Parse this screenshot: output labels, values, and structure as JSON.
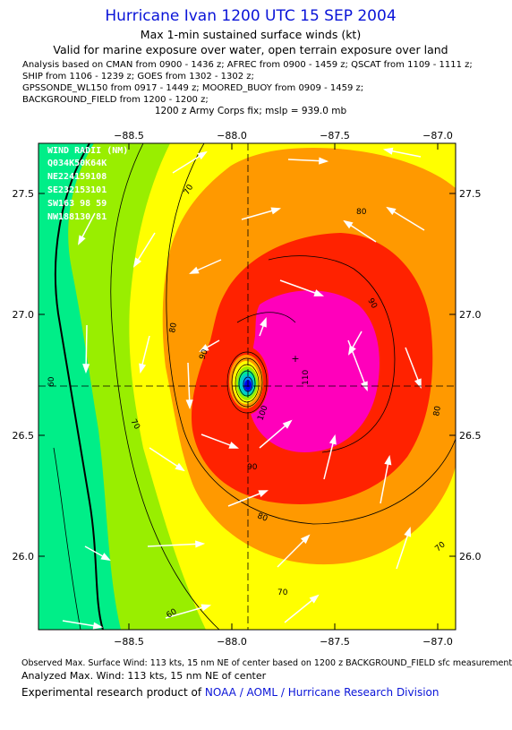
{
  "header": {
    "title": "Hurricane Ivan 1200 UTC 15 SEP 2004",
    "subtitle": "Max 1-min sustained surface winds (kt)",
    "valid_for": "Valid for marine exposure over water, open terrain exposure over land",
    "analysis_lines": [
      "Analysis based on  CMAN from 0900 - 1436 z;  AFREC from 0900 - 1459 z;  QSCAT from 1109 - 1111 z;",
      "SHIP from 1106 - 1239 z;  GOES from 1302 - 1302 z;",
      "GPSSONDE_WL150 from 0917 - 1449 z;  MOORED_BUOY from 0909 - 1459 z;",
      "BACKGROUND_FIELD from 1200 - 1200 z;"
    ],
    "army_fix": "1200 z Army Corps fix; mslp = 939.0 mb"
  },
  "map": {
    "x_ticks": [
      "−88.5",
      "−88.0",
      "−87.5",
      "−87.0"
    ],
    "y_ticks": [
      "27.5",
      "27.0",
      "26.5",
      "26.0"
    ],
    "contour_labels": [
      "60",
      "70",
      "80",
      "90",
      "100",
      "110"
    ],
    "wind_radii": {
      "title": "WIND RADII (NM)",
      "rows": [
        "Q034K50K64K",
        "NE224159108",
        "SE232153101",
        "SW163 98 59",
        "NW188130 81"
      ]
    },
    "center_marker": "+",
    "colors": {
      "band_60": "#00ee88",
      "band_70": "#99ee00",
      "band_80": "#ffff00",
      "band_90": "#ff9900",
      "band_100": "#ff2200",
      "band_110": "#ff00bb",
      "eye": "#0000ee",
      "max_wind": "#000000"
    }
  },
  "footer": {
    "observed": "Observed Max. Surface Wind: 113 kts, 15 nm NE of center based on 1200 z BACKGROUND_FIELD sfc measurement",
    "analyzed": "Analyzed Max. Wind: 113 kts, 15 nm NE of center",
    "credit_prefix": "Experimental research product of ",
    "credit_org": "NOAA / AOML / Hurricane Research Division"
  }
}
